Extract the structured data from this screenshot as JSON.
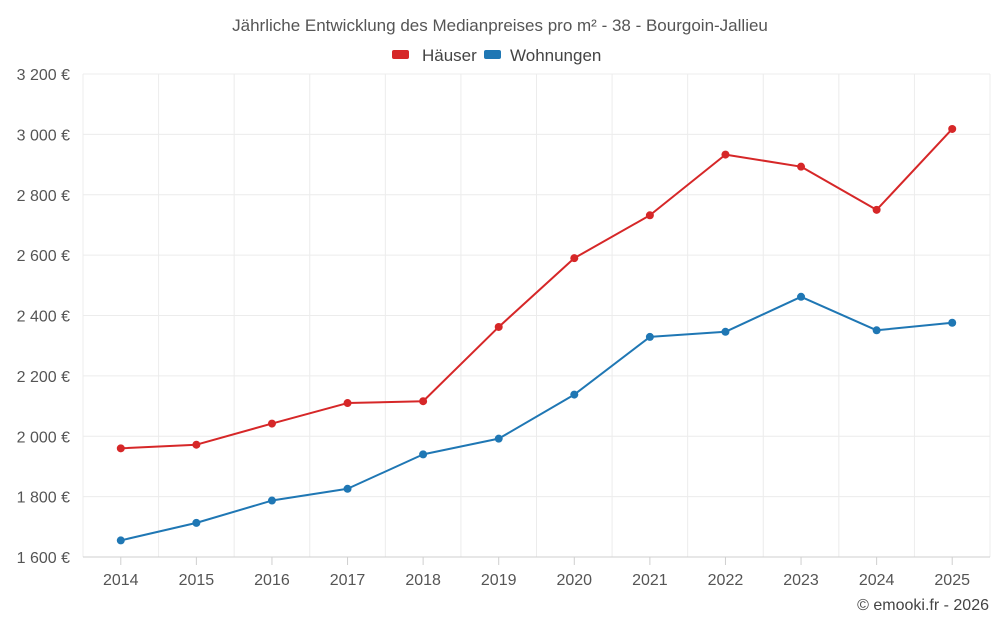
{
  "chart_data": {
    "type": "line",
    "title": "Jährliche Entwicklung des Medianpreises pro m² - 38 - Bourgoin-Jallieu",
    "categories": [
      "2014",
      "2015",
      "2016",
      "2017",
      "2018",
      "2019",
      "2020",
      "2021",
      "2022",
      "2023",
      "2024",
      "2025"
    ],
    "series": [
      {
        "name": "Häuser",
        "color": "#d62728",
        "values": [
          1960,
          1972,
          2042,
          2110,
          2116,
          2362,
          2590,
          2732,
          2933,
          2893,
          2750,
          3018
        ]
      },
      {
        "name": "Wohnungen",
        "color": "#1f77b4",
        "values": [
          1655,
          1713,
          1787,
          1826,
          1940,
          1992,
          2138,
          2329,
          2346,
          2462,
          2351,
          2376
        ]
      }
    ],
    "ylim": [
      1600,
      3200
    ],
    "yticks": [
      1600,
      1800,
      2000,
      2200,
      2400,
      2600,
      2800,
      3000,
      3200
    ],
    "ytick_labels": [
      "1 600 €",
      "1 800 €",
      "2 000 €",
      "2 200 €",
      "2 400 €",
      "2 600 €",
      "2 800 €",
      "3 000 €",
      "3 200 €"
    ],
    "grid": true,
    "legend": "top-center",
    "xlabel": "",
    "ylabel": ""
  },
  "credit": "© emooki.fr - 2026"
}
